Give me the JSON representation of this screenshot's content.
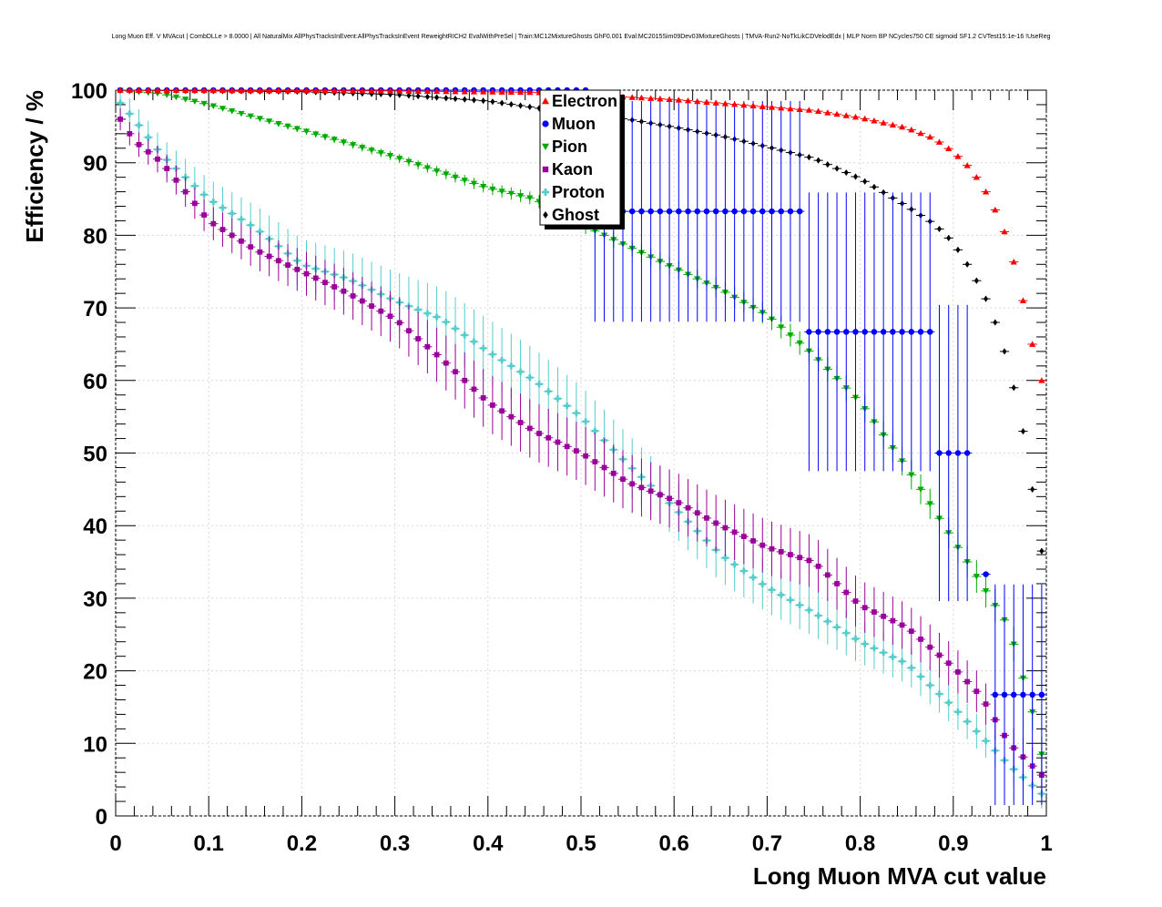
{
  "chart_data": {
    "type": "scatter",
    "title": "Long Muon Eff. V MVAcut | CombDLLe > 8.0000 | All NaturalMix AllPhysTracksInEvent:AllPhysTracksInEvent ReweightRICH2 EvalWithPreSel | Train:MC12MixtureGhosts GhF0.001 Eval:MC2015Sim09Dev03MixtureGhosts | TMVA-Run2-NoTkLikCDVelodEdx | MLP Norm BP NCycles750 CE sigmoid SF1.2 CVTest15:1e-16 !UseReg",
    "xlabel": "Long Muon MVA cut value",
    "ylabel": "Efficiency / %",
    "xlim": [
      0,
      1
    ],
    "ylim": [
      0,
      100
    ],
    "xticks": [
      "0",
      "0.1",
      "0.2",
      "0.3",
      "0.4",
      "0.5",
      "0.6",
      "0.7",
      "0.8",
      "0.9",
      "1"
    ],
    "yticks": [
      "0",
      "10",
      "20",
      "30",
      "40",
      "50",
      "60",
      "70",
      "80",
      "90",
      "100"
    ],
    "legend_position": "top-center",
    "series": [
      {
        "name": "Electron",
        "color": "#ff0000",
        "marker": "triangle-up",
        "error": [],
        "knots": [
          [
            0,
            100
          ],
          [
            0.3,
            99.9
          ],
          [
            0.45,
            99.7
          ],
          [
            0.5,
            99.4
          ],
          [
            0.6,
            98.7
          ],
          [
            0.7,
            97.7
          ],
          [
            0.75,
            97.2
          ],
          [
            0.8,
            96.2
          ],
          [
            0.85,
            94.8
          ],
          [
            0.88,
            93.3
          ],
          [
            0.9,
            91.5
          ],
          [
            0.92,
            89.0
          ],
          [
            0.94,
            85.0
          ],
          [
            0.96,
            79.0
          ],
          [
            0.975,
            71.0
          ],
          [
            0.99,
            62.0
          ],
          [
            1.0,
            58.0
          ]
        ]
      },
      {
        "name": "Muon",
        "color": "#0000ff",
        "marker": "circle",
        "values": [
          100,
          100,
          100,
          100,
          100,
          100,
          100,
          100,
          100,
          100,
          100,
          100,
          100,
          100,
          100,
          100,
          100,
          100,
          100,
          100,
          100,
          100,
          100,
          100,
          100,
          100,
          100,
          100,
          100,
          100,
          100,
          100,
          100,
          100,
          100,
          100,
          100,
          100,
          100,
          100,
          100,
          100,
          100,
          100,
          100,
          100,
          100,
          100,
          100,
          100,
          100,
          83.3,
          83.3,
          83.3,
          83.3,
          83.3,
          83.3,
          83.3,
          83.3,
          83.3,
          83.3,
          83.3,
          83.3,
          83.3,
          83.3,
          83.3,
          83.3,
          83.3,
          83.3,
          83.3,
          83.3,
          83.3,
          83.3,
          83.3,
          66.7,
          66.7,
          66.7,
          66.7,
          66.7,
          66.7,
          66.7,
          66.7,
          66.7,
          66.7,
          66.7,
          66.7,
          66.7,
          66.7,
          50,
          50,
          50,
          50,
          null,
          33.3,
          16.7,
          16.7,
          16.7,
          16.7,
          16.7,
          16.7,
          16.7
        ],
        "error": [
          0,
          0,
          0,
          0,
          0,
          0,
          0,
          0,
          0,
          0,
          0,
          0,
          0,
          0,
          0,
          0,
          0,
          0,
          0,
          0,
          0,
          0,
          0,
          0,
          0,
          0,
          0,
          0,
          0,
          0,
          0,
          0,
          0,
          0,
          0,
          0,
          0,
          0,
          0,
          0,
          0,
          0,
          0,
          0,
          0,
          0,
          0,
          0,
          0,
          0,
          0,
          15.2,
          15.2,
          15.2,
          15.2,
          15.2,
          15.2,
          15.2,
          15.2,
          15.2,
          15.2,
          15.2,
          15.2,
          15.2,
          15.2,
          15.2,
          15.2,
          15.2,
          15.2,
          15.2,
          15.2,
          15.2,
          15.2,
          15.2,
          19.2,
          19.2,
          19.2,
          19.2,
          19.2,
          19.2,
          19.2,
          19.2,
          19.2,
          19.2,
          19.2,
          19.2,
          19.2,
          19.2,
          20.4,
          20.4,
          20.4,
          20.4,
          0,
          0,
          15.2,
          15.2,
          15.2,
          15.2,
          15.2,
          15.2,
          15.2
        ]
      },
      {
        "name": "Pion",
        "color": "#00aa00",
        "marker": "triangle-down",
        "error": [
          [
            0,
            0.1
          ],
          [
            0.1,
            0.3
          ],
          [
            0.3,
            0.6
          ],
          [
            0.5,
            1.0
          ],
          [
            0.7,
            1.5
          ],
          [
            0.85,
            2.0
          ],
          [
            1.0,
            2.5
          ]
        ],
        "knots": [
          [
            0,
            100
          ],
          [
            0.05,
            99.5
          ],
          [
            0.1,
            98.0
          ],
          [
            0.2,
            94.5
          ],
          [
            0.3,
            90.8
          ],
          [
            0.4,
            86.5
          ],
          [
            0.45,
            85.0
          ],
          [
            0.5,
            81.5
          ],
          [
            0.55,
            78.5
          ],
          [
            0.6,
            75.5
          ],
          [
            0.65,
            72.5
          ],
          [
            0.7,
            69.0
          ],
          [
            0.75,
            63.5
          ],
          [
            0.8,
            57.0
          ],
          [
            0.85,
            48.0
          ],
          [
            0.9,
            38.0
          ],
          [
            0.93,
            32.0
          ],
          [
            0.96,
            26.0
          ],
          [
            0.99,
            12.0
          ],
          [
            1.0,
            5.0
          ]
        ]
      },
      {
        "name": "Kaon",
        "color": "#990099",
        "marker": "square",
        "error": [
          [
            0,
            1.5
          ],
          [
            0.2,
            3.0
          ],
          [
            0.4,
            4.0
          ],
          [
            0.6,
            4.0
          ],
          [
            0.8,
            3.5
          ],
          [
            1.0,
            2.5
          ]
        ],
        "knots": [
          [
            0,
            97
          ],
          [
            0.02,
            93
          ],
          [
            0.05,
            90
          ],
          [
            0.1,
            82
          ],
          [
            0.15,
            78
          ],
          [
            0.2,
            75
          ],
          [
            0.25,
            72
          ],
          [
            0.3,
            68.5
          ],
          [
            0.35,
            63
          ],
          [
            0.4,
            57
          ],
          [
            0.45,
            53
          ],
          [
            0.5,
            50
          ],
          [
            0.55,
            46
          ],
          [
            0.6,
            43.5
          ],
          [
            0.65,
            40
          ],
          [
            0.7,
            37
          ],
          [
            0.75,
            35
          ],
          [
            0.8,
            29
          ],
          [
            0.85,
            26
          ],
          [
            0.9,
            20.5
          ],
          [
            0.93,
            16.5
          ],
          [
            0.96,
            10
          ],
          [
            1.0,
            5
          ]
        ]
      },
      {
        "name": "Proton",
        "color": "#55cccc",
        "marker": "cross",
        "error": [
          [
            0,
            2.0
          ],
          [
            0.2,
            3.5
          ],
          [
            0.4,
            4.5
          ],
          [
            0.6,
            4.0
          ],
          [
            0.8,
            3.0
          ],
          [
            1.0,
            2.0
          ]
        ],
        "knots": [
          [
            0,
            99
          ],
          [
            0.02,
            96
          ],
          [
            0.05,
            91
          ],
          [
            0.1,
            85
          ],
          [
            0.15,
            81
          ],
          [
            0.2,
            76
          ],
          [
            0.25,
            74
          ],
          [
            0.3,
            71
          ],
          [
            0.35,
            68.5
          ],
          [
            0.4,
            64
          ],
          [
            0.45,
            60
          ],
          [
            0.5,
            55
          ],
          [
            0.55,
            48.5
          ],
          [
            0.6,
            42.5
          ],
          [
            0.65,
            36
          ],
          [
            0.7,
            31.5
          ],
          [
            0.75,
            28
          ],
          [
            0.8,
            24
          ],
          [
            0.85,
            21
          ],
          [
            0.9,
            15
          ],
          [
            0.93,
            11
          ],
          [
            0.96,
            7
          ],
          [
            1.0,
            2.5
          ]
        ]
      },
      {
        "name": "Ghost",
        "color": "#000000",
        "marker": "diamond",
        "error": [],
        "knots": [
          [
            0,
            100
          ],
          [
            0.2,
            99.8
          ],
          [
            0.3,
            99.4
          ],
          [
            0.4,
            98.5
          ],
          [
            0.5,
            96.7
          ],
          [
            0.55,
            96.0
          ],
          [
            0.6,
            94.9
          ],
          [
            0.65,
            93.7
          ],
          [
            0.7,
            92.2
          ],
          [
            0.75,
            90.6
          ],
          [
            0.8,
            87.8
          ],
          [
            0.85,
            84.0
          ],
          [
            0.88,
            81.5
          ],
          [
            0.9,
            79.0
          ],
          [
            0.92,
            75.0
          ],
          [
            0.94,
            70.0
          ],
          [
            0.96,
            62.0
          ],
          [
            0.97,
            56.0
          ],
          [
            0.98,
            50.0
          ],
          [
            0.99,
            40.0
          ],
          [
            1.0,
            33.0
          ]
        ]
      }
    ]
  }
}
